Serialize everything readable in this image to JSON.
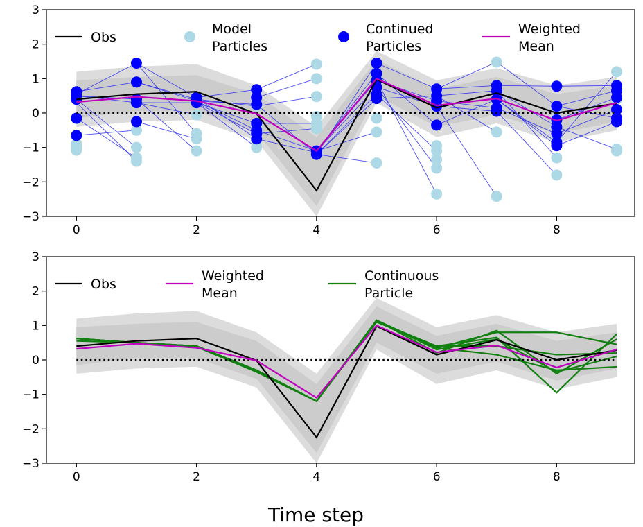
{
  "chart_data": [
    {
      "type": "line",
      "xlim": [
        -0.5,
        9.3
      ],
      "ylim": [
        -3,
        3
      ],
      "xticks": [
        0,
        2,
        4,
        6,
        8
      ],
      "yticks": [
        -3,
        -2,
        -1,
        0,
        1,
        2,
        3
      ],
      "legend": {
        "placement": "top",
        "entries": [
          {
            "label": "Obs",
            "marker": "line",
            "color": "#000000"
          },
          {
            "label": "Model\nParticles",
            "marker": "dot",
            "color": "#add8e6"
          },
          {
            "label": "Continued\nParticles",
            "marker": "dot",
            "color": "#0000ff"
          },
          {
            "label": "Weighted\nMean",
            "marker": "line",
            "color": "#bf00bf"
          }
        ]
      },
      "x": [
        0,
        1,
        2,
        3,
        4,
        5,
        6,
        7,
        8,
        9
      ],
      "obs": [
        0.4,
        0.55,
        0.62,
        -0.02,
        -2.25,
        0.98,
        0.15,
        0.58,
        0.0,
        0.28
      ],
      "weighted_mean": [
        0.32,
        0.47,
        0.35,
        -0.02,
        -1.1,
        1.0,
        0.22,
        0.42,
        -0.22,
        0.3
      ],
      "zero_line": 0,
      "outer_band": {
        "upper": [
          1.2,
          1.35,
          1.42,
          0.8,
          -0.4,
          1.8,
          0.95,
          1.3,
          0.8,
          1.05
        ],
        "lower": [
          -0.4,
          -0.25,
          -0.2,
          -0.8,
          -3.0,
          0.3,
          -0.7,
          -0.3,
          -0.85,
          -0.5
        ]
      },
      "inner_band": {
        "upper": [
          0.95,
          1.05,
          1.1,
          0.55,
          -0.7,
          1.55,
          0.7,
          1.05,
          0.55,
          0.8
        ],
        "lower": [
          -0.15,
          0.05,
          0.05,
          -0.55,
          -2.7,
          0.5,
          -0.4,
          -0.05,
          -0.6,
          -0.25
        ]
      },
      "model_particles": [
        [
          0,
          -0.65
        ],
        [
          0,
          -0.9
        ],
        [
          0,
          -1.0
        ],
        [
          0,
          -1.08
        ],
        [
          0,
          -0.15
        ],
        [
          0,
          0.6
        ],
        [
          1,
          -1.4
        ],
        [
          1,
          -1.3
        ],
        [
          1,
          -1.0
        ],
        [
          1,
          -0.5
        ],
        [
          1,
          0.3
        ],
        [
          1,
          0.9
        ],
        [
          2,
          -1.1
        ],
        [
          2,
          -0.75
        ],
        [
          2,
          -0.6
        ],
        [
          2,
          -0.05
        ],
        [
          2,
          0.4
        ],
        [
          3,
          -1.0
        ],
        [
          3,
          -0.8
        ],
        [
          3,
          -0.4
        ],
        [
          3,
          0.2
        ],
        [
          4,
          1.42
        ],
        [
          4,
          1.0
        ],
        [
          4,
          0.48
        ],
        [
          4,
          -0.1
        ],
        [
          4,
          -0.3
        ],
        [
          4,
          -0.45
        ],
        [
          4,
          -1.2
        ],
        [
          5,
          1.1
        ],
        [
          5,
          0.8
        ],
        [
          5,
          -0.15
        ],
        [
          5,
          -0.55
        ],
        [
          5,
          -1.45
        ],
        [
          6,
          -0.95
        ],
        [
          6,
          -1.1
        ],
        [
          6,
          -1.35
        ],
        [
          6,
          -1.6
        ],
        [
          6,
          -2.35
        ],
        [
          6,
          0.2
        ],
        [
          7,
          1.48
        ],
        [
          7,
          -0.55
        ],
        [
          7,
          -2.42
        ],
        [
          7,
          0.2
        ],
        [
          8,
          -1.3
        ],
        [
          8,
          -1.8
        ],
        [
          8,
          -0.7
        ],
        [
          8,
          0.1
        ],
        [
          9,
          1.2
        ],
        [
          9,
          0.4
        ],
        [
          9,
          -1.05
        ],
        [
          9,
          -1.1
        ]
      ],
      "continued_particles": [
        [
          0,
          0.62
        ],
        [
          0,
          0.5
        ],
        [
          0,
          0.4
        ],
        [
          0,
          -0.15
        ],
        [
          0,
          -0.65
        ],
        [
          1,
          1.45
        ],
        [
          1,
          0.9
        ],
        [
          1,
          0.4
        ],
        [
          1,
          0.3
        ],
        [
          1,
          -0.25
        ],
        [
          2,
          0.45
        ],
        [
          2,
          0.35
        ],
        [
          2,
          0.3
        ],
        [
          3,
          0.68
        ],
        [
          3,
          0.45
        ],
        [
          3,
          0.25
        ],
        [
          3,
          -0.3
        ],
        [
          3,
          -0.5
        ],
        [
          3,
          -0.6
        ],
        [
          3,
          -0.75
        ],
        [
          4,
          -1.1
        ],
        [
          4,
          -1.2
        ],
        [
          5,
          1.45
        ],
        [
          5,
          1.15
        ],
        [
          5,
          0.95
        ],
        [
          5,
          0.75
        ],
        [
          5,
          0.55
        ],
        [
          5,
          0.42
        ],
        [
          6,
          0.7
        ],
        [
          6,
          0.5
        ],
        [
          6,
          0.35
        ],
        [
          6,
          0.2
        ],
        [
          6,
          -0.35
        ],
        [
          7,
          0.8
        ],
        [
          7,
          0.65
        ],
        [
          7,
          0.4
        ],
        [
          7,
          0.15
        ],
        [
          7,
          0.05
        ],
        [
          8,
          0.78
        ],
        [
          8,
          0.2
        ],
        [
          8,
          -0.2
        ],
        [
          8,
          -0.4
        ],
        [
          8,
          -0.6
        ],
        [
          8,
          -0.85
        ],
        [
          8,
          -0.95
        ],
        [
          9,
          0.8
        ],
        [
          9,
          0.65
        ],
        [
          9,
          0.45
        ],
        [
          9,
          0.1
        ],
        [
          9,
          -0.15
        ],
        [
          9,
          -0.25
        ]
      ],
      "particle_links": [
        [
          0,
          0.62,
          1,
          0.9
        ],
        [
          0,
          0.55,
          1,
          1.45
        ],
        [
          0,
          0.5,
          1,
          0.3
        ],
        [
          0,
          0.4,
          1,
          -1.0
        ],
        [
          0,
          0.3,
          1,
          -1.4
        ],
        [
          0,
          -0.15,
          1,
          -1.3
        ],
        [
          0,
          -0.65,
          1,
          -0.5
        ],
        [
          0,
          0.5,
          1,
          0.4
        ],
        [
          1,
          1.45,
          2,
          0.45
        ],
        [
          1,
          1.45,
          2,
          -0.6
        ],
        [
          1,
          0.9,
          2,
          0.35
        ],
        [
          1,
          0.4,
          2,
          -1.1
        ],
        [
          1,
          0.3,
          2,
          0.3
        ],
        [
          1,
          -0.25,
          2,
          -0.75
        ],
        [
          1,
          0.3,
          2,
          -0.05
        ],
        [
          1,
          0.9,
          2,
          0.4
        ],
        [
          2,
          0.45,
          3,
          0.68
        ],
        [
          2,
          0.45,
          3,
          -0.75
        ],
        [
          2,
          0.35,
          3,
          0.25
        ],
        [
          2,
          0.3,
          3,
          -0.3
        ],
        [
          2,
          0.3,
          3,
          -1.0
        ],
        [
          2,
          0.4,
          3,
          0.2
        ],
        [
          2,
          0.35,
          3,
          -0.5
        ],
        [
          2,
          0.3,
          3,
          -0.6
        ],
        [
          3,
          0.68,
          4,
          1.42
        ],
        [
          3,
          0.45,
          4,
          1.0
        ],
        [
          3,
          0.25,
          4,
          -1.2
        ],
        [
          3,
          -0.3,
          4,
          -0.3
        ],
        [
          3,
          -0.5,
          4,
          -1.1
        ],
        [
          3,
          -0.6,
          4,
          -0.45
        ],
        [
          3,
          -0.75,
          4,
          -1.15
        ],
        [
          3,
          0.2,
          4,
          0.48
        ],
        [
          4,
          -1.2,
          5,
          1.45
        ],
        [
          4,
          -1.1,
          5,
          1.15
        ],
        [
          4,
          -1.1,
          5,
          0.75
        ],
        [
          4,
          -1.2,
          5,
          0.42
        ],
        [
          4,
          -1.1,
          5,
          -0.55
        ],
        [
          4,
          -1.2,
          5,
          -1.45
        ],
        [
          4,
          -1.1,
          5,
          0.95
        ],
        [
          4,
          -1.2,
          5,
          0.55
        ],
        [
          5,
          1.45,
          6,
          0.7
        ],
        [
          5,
          1.15,
          6,
          -0.35
        ],
        [
          5,
          0.95,
          6,
          -2.35
        ],
        [
          5,
          0.75,
          6,
          0.2
        ],
        [
          5,
          0.55,
          6,
          -1.1
        ],
        [
          5,
          0.42,
          6,
          0.5
        ],
        [
          5,
          0.95,
          6,
          0.35
        ],
        [
          5,
          0.75,
          6,
          -1.6
        ],
        [
          6,
          0.7,
          7,
          0.8
        ],
        [
          6,
          0.5,
          7,
          0.65
        ],
        [
          6,
          0.35,
          7,
          0.15
        ],
        [
          6,
          0.2,
          7,
          -2.42
        ],
        [
          6,
          -0.35,
          7,
          0.4
        ],
        [
          6,
          0.7,
          7,
          1.48
        ],
        [
          6,
          0.2,
          7,
          0.05
        ],
        [
          6,
          0.5,
          7,
          -0.55
        ],
        [
          7,
          0.8,
          8,
          0.78
        ],
        [
          7,
          0.65,
          8,
          -0.4
        ],
        [
          7,
          0.4,
          8,
          -0.95
        ],
        [
          7,
          0.15,
          8,
          -0.6
        ],
        [
          7,
          0.05,
          8,
          -1.8
        ],
        [
          7,
          1.48,
          8,
          0.2
        ],
        [
          7,
          0.4,
          8,
          -0.85
        ],
        [
          7,
          0.65,
          8,
          -1.3
        ],
        [
          8,
          0.78,
          9,
          0.8
        ],
        [
          8,
          0.2,
          9,
          0.65
        ],
        [
          8,
          -0.2,
          9,
          0.45
        ],
        [
          8,
          -0.4,
          9,
          -1.05
        ],
        [
          8,
          -0.6,
          9,
          0.1
        ],
        [
          8,
          -0.95,
          9,
          -0.25
        ],
        [
          8,
          -0.85,
          9,
          1.2
        ],
        [
          8,
          0.2,
          9,
          -0.15
        ]
      ]
    },
    {
      "type": "line",
      "xlim": [
        -0.5,
        9.3
      ],
      "ylim": [
        -3,
        3
      ],
      "xticks": [
        0,
        2,
        4,
        6,
        8
      ],
      "yticks": [
        -3,
        -2,
        -1,
        0,
        1,
        2,
        3
      ],
      "xlabel": "Time step",
      "legend": {
        "placement": "top",
        "entries": [
          {
            "label": "Obs",
            "marker": "line",
            "color": "#000000"
          },
          {
            "label": "Weighted\nMean",
            "marker": "line",
            "color": "#bf00bf"
          },
          {
            "label": "Continuous\nParticle",
            "marker": "line",
            "color": "#118011"
          }
        ]
      },
      "x": [
        0,
        1,
        2,
        3,
        4,
        5,
        6,
        7,
        8,
        9
      ],
      "obs": [
        0.4,
        0.55,
        0.62,
        -0.02,
        -2.25,
        0.98,
        0.15,
        0.58,
        0.0,
        0.28
      ],
      "weighted_mean": [
        0.32,
        0.47,
        0.35,
        -0.02,
        -1.1,
        1.0,
        0.22,
        0.42,
        -0.22,
        0.3
      ],
      "zero_line": 0,
      "outer_band": {
        "upper": [
          1.2,
          1.35,
          1.42,
          0.8,
          -0.4,
          1.8,
          0.95,
          1.3,
          0.8,
          1.05
        ],
        "lower": [
          -0.4,
          -0.25,
          -0.2,
          -0.8,
          -3.0,
          0.3,
          -0.7,
          -0.3,
          -0.85,
          -0.5
        ]
      },
      "inner_band": {
        "upper": [
          0.95,
          1.05,
          1.1,
          0.55,
          -0.7,
          1.55,
          0.7,
          1.05,
          0.55,
          0.8
        ],
        "lower": [
          -0.15,
          0.05,
          0.05,
          -0.55,
          -2.7,
          0.5,
          -0.4,
          -0.05,
          -0.6,
          -0.25
        ]
      },
      "continuous_particles": [
        [
          0.62,
          0.5,
          0.4,
          -0.3,
          -1.2,
          1.15,
          0.35,
          0.8,
          0.8,
          0.45
        ],
        [
          0.55,
          0.5,
          0.38,
          -0.35,
          -1.2,
          1.12,
          0.4,
          0.65,
          -0.95,
          0.75
        ],
        [
          0.62,
          0.5,
          0.4,
          -0.3,
          -1.2,
          1.15,
          0.2,
          0.85,
          -0.4,
          0.6
        ],
        [
          0.62,
          0.5,
          0.4,
          -0.3,
          -1.2,
          1.15,
          0.35,
          0.15,
          -0.3,
          -0.2
        ],
        [
          0.62,
          0.5,
          0.4,
          -0.3,
          -1.2,
          1.1,
          0.4,
          0.4,
          0.15,
          0.2
        ],
        [
          0.62,
          0.5,
          0.4,
          -0.3,
          -1.2,
          1.15,
          0.3,
          0.6,
          -0.35,
          0.1
        ]
      ]
    }
  ]
}
